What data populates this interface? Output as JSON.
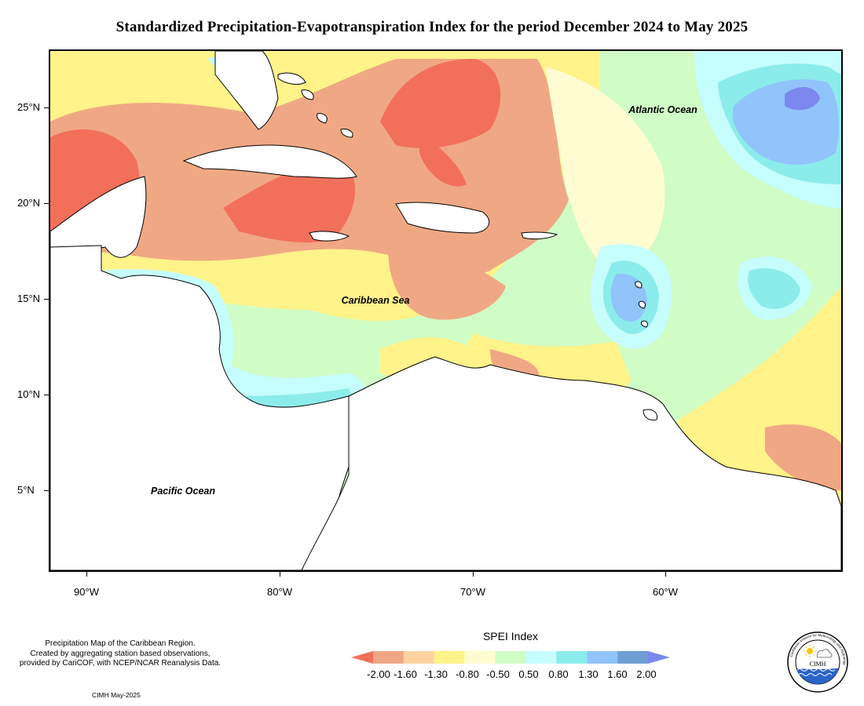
{
  "title": "Standardized Precipitation-Evapotranspiration Index for the period December 2024 to May 2025",
  "map": {
    "lon_range": [
      -92,
      -51
    ],
    "lat_range": [
      1,
      28
    ],
    "lat_ticks": [
      "25°N",
      "20°N",
      "15°N",
      "10°N",
      "5°N"
    ],
    "lon_ticks": [
      "90°W",
      "80°W",
      "70°W",
      "60°W"
    ],
    "region_labels": {
      "atlantic": "Atlantic Ocean",
      "caribbean": "Caribbean Sea",
      "pacific": "Pacific Ocean"
    }
  },
  "credit": {
    "line1": "Precipitation Map of the Caribbean Region.",
    "line2": "Created by aggregating station based observations,",
    "line3": "provided by CariCOF, with NCEP/NCAR Reanalysis Data.",
    "date": "CIMH May-2025"
  },
  "legend": {
    "title": "SPEI Index",
    "labels": [
      "-2.00",
      "-1.60",
      "-1.30",
      "-0.80",
      "-0.50",
      "0.50",
      "0.80",
      "1.30",
      "1.60",
      "2.00"
    ],
    "colors": [
      "#f2705a",
      "#f0a884",
      "#ffd3a0",
      "#fff38a",
      "#fffcd2",
      "#d0fcc6",
      "#c6fdfd",
      "#8ceceb",
      "#90c4fa",
      "#6f9fd2",
      "#7c88ee"
    ]
  },
  "logo": {
    "name": "CIMH",
    "ring_text": "Caribbean Institute for Meteorology and Hydrology"
  }
}
